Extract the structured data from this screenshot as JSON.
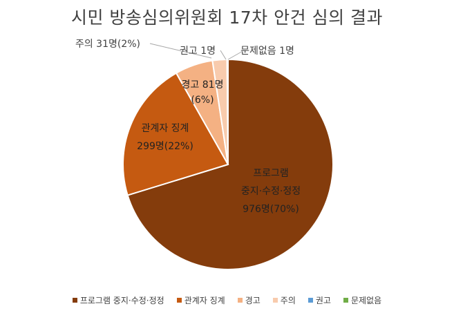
{
  "chart_data": {
    "type": "pie",
    "title": "시민 방송심의위원회 17차 안건 심의 결과",
    "slices": [
      {
        "name": "프로그램 중지·수정·정정",
        "value": 976,
        "label_lines": [
          "프로그램",
          "중지·수정·정정",
          "976명(70%)"
        ],
        "color": "#843C0C"
      },
      {
        "name": "관계자 징계",
        "value": 299,
        "label_lines": [
          "관계자 징계",
          "299명(22%)"
        ],
        "color": "#C55A11"
      },
      {
        "name": "경고",
        "value": 81,
        "label_lines": [
          "경고 81명",
          "(6%)"
        ],
        "color": "#F4B183"
      },
      {
        "name": "주의",
        "value": 31,
        "label_lines": [
          "주의 31명(2%)"
        ],
        "color": "#F8CBAD"
      },
      {
        "name": "권고",
        "value": 1,
        "label_lines": [
          "권고 1명"
        ],
        "color": "#5B9BD5"
      },
      {
        "name": "문제없음",
        "value": 1,
        "label_lines": [
          "문제없음 1명"
        ],
        "color": "#70AD47"
      }
    ],
    "legend_position": "bottom"
  }
}
